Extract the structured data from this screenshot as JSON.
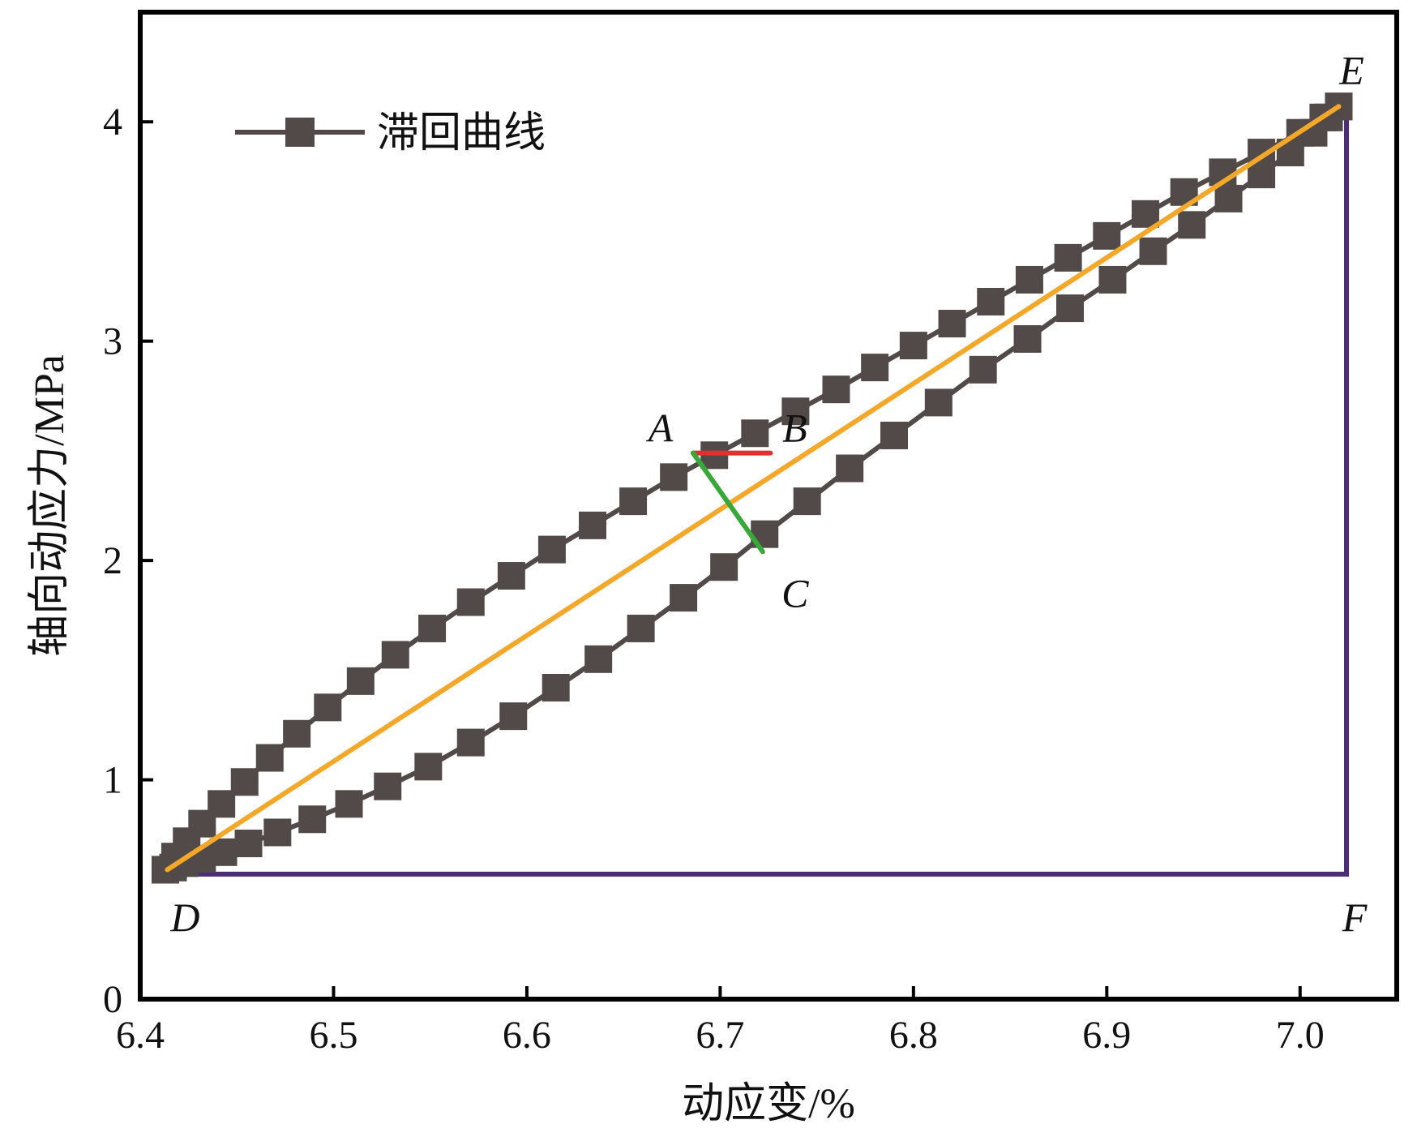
{
  "chart_data": {
    "type": "line",
    "xlabel": "动应变/%",
    "ylabel": "轴向动应力/MPa",
    "xlim": [
      6.4,
      7.05
    ],
    "ylim": [
      0,
      4.5
    ],
    "x_ticks": [
      "6.4",
      "6.5",
      "6.6",
      "6.7",
      "6.8",
      "6.9",
      "7.0"
    ],
    "y_ticks": [
      "0",
      "1",
      "2",
      "3",
      "4"
    ],
    "legend": {
      "position": "top-left",
      "entries": [
        "滞回曲线"
      ]
    },
    "colors": {
      "hysteresis": "#524a48",
      "fit_line": "#f3a82a",
      "ab_line": "#e03030",
      "ac_line": "#38a838",
      "triangle": "#4d2d78"
    },
    "series": [
      {
        "name": "滞回曲线",
        "loading": {
          "x": [
            6.413,
            6.418,
            6.424,
            6.432,
            6.442,
            6.454,
            6.467,
            6.481,
            6.497,
            6.514,
            6.532,
            6.551,
            6.571,
            6.592,
            6.613,
            6.634,
            6.655,
            6.676,
            6.697,
            6.718,
            6.739,
            6.76,
            6.78,
            6.8,
            6.82,
            6.84,
            6.86,
            6.88,
            6.9,
            6.92,
            6.94,
            6.96,
            6.98,
            7.0,
            7.012,
            7.02
          ],
          "y": [
            0.59,
            0.65,
            0.72,
            0.8,
            0.89,
            0.99,
            1.1,
            1.21,
            1.33,
            1.45,
            1.57,
            1.69,
            1.81,
            1.93,
            2.05,
            2.16,
            2.27,
            2.38,
            2.48,
            2.58,
            2.68,
            2.78,
            2.88,
            2.98,
            3.08,
            3.18,
            3.28,
            3.38,
            3.48,
            3.58,
            3.68,
            3.77,
            3.86,
            3.95,
            4.02,
            4.07
          ]
        },
        "unloading": {
          "x": [
            7.02,
            7.015,
            7.007,
            6.995,
            6.98,
            6.963,
            6.944,
            6.924,
            6.903,
            6.881,
            6.859,
            6.836,
            6.813,
            6.79,
            6.767,
            6.745,
            6.723,
            6.702,
            6.681,
            6.659,
            6.637,
            6.615,
            6.593,
            6.571,
            6.549,
            6.528,
            6.508,
            6.489,
            6.471,
            6.456,
            6.443,
            6.432,
            6.423,
            6.417,
            6.413
          ],
          "y": [
            4.07,
            4.02,
            3.95,
            3.86,
            3.76,
            3.65,
            3.53,
            3.41,
            3.28,
            3.15,
            3.01,
            2.87,
            2.72,
            2.57,
            2.42,
            2.27,
            2.12,
            1.97,
            1.83,
            1.69,
            1.55,
            1.42,
            1.29,
            1.17,
            1.06,
            0.97,
            0.89,
            0.82,
            0.76,
            0.71,
            0.67,
            0.64,
            0.62,
            0.6,
            0.59
          ]
        }
      }
    ],
    "overlays": {
      "fit_line": {
        "x": [
          6.414,
          7.02
        ],
        "y": [
          0.59,
          4.07
        ]
      },
      "ab_line": {
        "x": [
          6.686,
          6.726
        ],
        "y": [
          2.49,
          2.49
        ]
      },
      "ac_line": {
        "x": [
          6.686,
          6.722
        ],
        "y": [
          2.49,
          2.04
        ]
      },
      "triangle": {
        "x": [
          6.414,
          7.024,
          7.024
        ],
        "y": [
          0.57,
          0.57,
          4.07
        ]
      }
    },
    "annotations": [
      {
        "text": "A",
        "x": 6.686,
        "y": 2.49
      },
      {
        "text": "B",
        "x": 6.726,
        "y": 2.49
      },
      {
        "text": "C",
        "x": 6.722,
        "y": 2.04
      },
      {
        "text": "D",
        "x": 6.414,
        "y": 0.57
      },
      {
        "text": "E",
        "x": 7.02,
        "y": 4.07
      },
      {
        "text": "F",
        "x": 7.024,
        "y": 0.57
      }
    ]
  }
}
